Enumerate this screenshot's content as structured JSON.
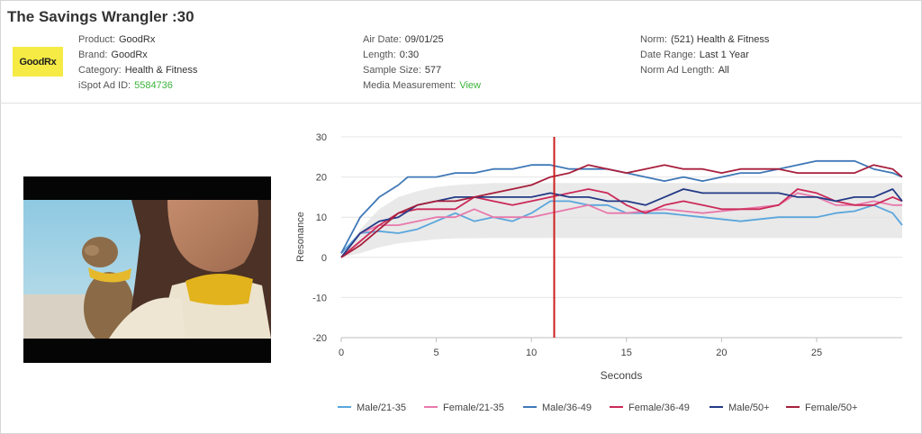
{
  "header": {
    "title": "The Savings Wrangler :30",
    "logo_text": "GoodRx",
    "col1": [
      {
        "label": "Product:",
        "value": "GoodRx"
      },
      {
        "label": "Brand:",
        "value": "GoodRx"
      },
      {
        "label": "Category:",
        "value": "Health & Fitness"
      },
      {
        "label": "iSpot Ad ID:",
        "value": "5584736"
      }
    ],
    "col2": [
      {
        "label": "Air Date:",
        "value": "09/01/25"
      },
      {
        "label": "Length:",
        "value": "0:30"
      },
      {
        "label": "Sample Size:",
        "value": "577"
      },
      {
        "label": "Media Measurement:",
        "value": "View"
      }
    ],
    "col3": [
      {
        "label": "Norm:",
        "value": "(521) Health & Fitness"
      },
      {
        "label": "Date Range:",
        "value": "Last 1 Year"
      },
      {
        "label": "Norm Ad Length:",
        "value": "All"
      }
    ]
  },
  "colors": {
    "green": "#3db33d",
    "logo_bg": "#f6eb45",
    "marker": "#cc1f1f",
    "norm_band": "#e9e9e9"
  },
  "chart_data": {
    "type": "line",
    "xlabel": "Seconds",
    "ylabel": "Resonance",
    "xlim": [
      0,
      29.5
    ],
    "ylim": [
      -20,
      30
    ],
    "xticks": [
      0,
      5,
      10,
      15,
      20,
      25
    ],
    "yticks": [
      -20,
      -10,
      0,
      10,
      20,
      30
    ],
    "marker_x": 11.2,
    "norm_band": {
      "x": [
        0,
        1,
        2,
        3,
        4,
        5,
        6,
        8,
        10,
        12,
        15,
        20,
        25,
        29.5
      ],
      "upper": [
        0,
        7,
        12,
        15,
        16.5,
        17.5,
        18,
        18.5,
        18.5,
        18.5,
        18.5,
        18.5,
        18.5,
        18.5
      ],
      "lower": [
        0,
        1,
        2.5,
        3.5,
        4,
        4.5,
        4.7,
        4.8,
        4.8,
        4.8,
        4.8,
        4.8,
        4.8,
        4.8
      ]
    },
    "series": [
      {
        "name": "Male/21-35",
        "color": "#5aa6dc",
        "points": [
          [
            0,
            1
          ],
          [
            1,
            6
          ],
          [
            2,
            6.5
          ],
          [
            3,
            6
          ],
          [
            4,
            7
          ],
          [
            5,
            9
          ],
          [
            6,
            11
          ],
          [
            7,
            9
          ],
          [
            8,
            10
          ],
          [
            9,
            9
          ],
          [
            10,
            11
          ],
          [
            11,
            14
          ],
          [
            12,
            14
          ],
          [
            13,
            13
          ],
          [
            14,
            13
          ],
          [
            15,
            11
          ],
          [
            17,
            11
          ],
          [
            19,
            10
          ],
          [
            21,
            9
          ],
          [
            23,
            10
          ],
          [
            25,
            10
          ],
          [
            26,
            11
          ],
          [
            27,
            11.5
          ],
          [
            28,
            13
          ],
          [
            29,
            11
          ],
          [
            29.5,
            8
          ]
        ]
      },
      {
        "name": "Female/21-35",
        "color": "#e879ab",
        "points": [
          [
            0,
            0
          ],
          [
            1,
            6
          ],
          [
            2,
            8
          ],
          [
            3,
            8
          ],
          [
            4,
            9
          ],
          [
            5,
            10
          ],
          [
            6,
            10
          ],
          [
            7,
            12
          ],
          [
            8,
            10
          ],
          [
            9,
            10
          ],
          [
            10,
            10
          ],
          [
            11,
            11
          ],
          [
            12,
            12
          ],
          [
            13,
            13
          ],
          [
            14,
            11
          ],
          [
            15,
            11
          ],
          [
            17,
            12
          ],
          [
            19,
            11
          ],
          [
            21,
            12
          ],
          [
            23,
            13
          ],
          [
            24,
            16
          ],
          [
            25,
            15
          ],
          [
            26,
            13
          ],
          [
            27,
            13
          ],
          [
            28,
            14
          ],
          [
            29,
            13
          ],
          [
            29.5,
            13
          ]
        ]
      },
      {
        "name": "Male/36-49",
        "color": "#3f78b7",
        "points": [
          [
            0,
            1
          ],
          [
            1,
            10
          ],
          [
            2,
            15
          ],
          [
            3,
            18
          ],
          [
            3.5,
            20
          ],
          [
            5,
            20
          ],
          [
            6,
            21
          ],
          [
            7,
            21
          ],
          [
            8,
            22
          ],
          [
            9,
            22
          ],
          [
            10,
            23
          ],
          [
            11,
            23
          ],
          [
            12,
            22
          ],
          [
            14,
            22
          ],
          [
            15,
            21
          ],
          [
            16,
            20
          ],
          [
            17,
            19
          ],
          [
            18,
            20
          ],
          [
            19,
            19
          ],
          [
            20,
            20
          ],
          [
            21,
            21
          ],
          [
            22,
            21
          ],
          [
            23,
            22
          ],
          [
            24,
            23
          ],
          [
            25,
            24
          ],
          [
            26,
            24
          ],
          [
            27,
            24
          ],
          [
            28,
            22
          ],
          [
            29,
            21
          ],
          [
            29.5,
            20
          ]
        ]
      },
      {
        "name": "Female/36-49",
        "color": "#cc2958",
        "points": [
          [
            0,
            0
          ],
          [
            1,
            4
          ],
          [
            2,
            8
          ],
          [
            3,
            11
          ],
          [
            4,
            12
          ],
          [
            5,
            12
          ],
          [
            6,
            12
          ],
          [
            7,
            15
          ],
          [
            8,
            14
          ],
          [
            9,
            13
          ],
          [
            10,
            14
          ],
          [
            11,
            15
          ],
          [
            12,
            16
          ],
          [
            13,
            17
          ],
          [
            14,
            16
          ],
          [
            15,
            13
          ],
          [
            16,
            11
          ],
          [
            17,
            13
          ],
          [
            18,
            14
          ],
          [
            19,
            13
          ],
          [
            20,
            12
          ],
          [
            22,
            12
          ],
          [
            23,
            13
          ],
          [
            24,
            17
          ],
          [
            25,
            16
          ],
          [
            26,
            14
          ],
          [
            27,
            13
          ],
          [
            28,
            13
          ],
          [
            29,
            15
          ],
          [
            29.5,
            14
          ]
        ]
      },
      {
        "name": "Male/50+",
        "color": "#233a86",
        "points": [
          [
            0,
            0
          ],
          [
            1,
            6
          ],
          [
            2,
            9
          ],
          [
            3,
            10
          ],
          [
            4,
            13
          ],
          [
            5,
            14
          ],
          [
            6,
            15
          ],
          [
            8,
            15
          ],
          [
            10,
            15
          ],
          [
            11,
            16
          ],
          [
            12,
            15
          ],
          [
            13,
            15
          ],
          [
            14,
            14
          ],
          [
            15,
            14
          ],
          [
            16,
            13
          ],
          [
            17,
            15
          ],
          [
            18,
            17
          ],
          [
            19,
            16
          ],
          [
            21,
            16
          ],
          [
            23,
            16
          ],
          [
            24,
            15
          ],
          [
            25,
            15
          ],
          [
            26,
            14
          ],
          [
            27,
            15
          ],
          [
            28,
            15
          ],
          [
            29,
            17
          ],
          [
            29.5,
            14
          ]
        ]
      },
      {
        "name": "Female/50+",
        "color": "#a81f3c",
        "points": [
          [
            0,
            0
          ],
          [
            1,
            3
          ],
          [
            2,
            7
          ],
          [
            3,
            11
          ],
          [
            4,
            13
          ],
          [
            5,
            14
          ],
          [
            6,
            14
          ],
          [
            7,
            15
          ],
          [
            8,
            16
          ],
          [
            9,
            17
          ],
          [
            10,
            18
          ],
          [
            11,
            20
          ],
          [
            12,
            21
          ],
          [
            13,
            23
          ],
          [
            14,
            22
          ],
          [
            15,
            21
          ],
          [
            16,
            22
          ],
          [
            17,
            23
          ],
          [
            18,
            22
          ],
          [
            19,
            22
          ],
          [
            20,
            21
          ],
          [
            21,
            22
          ],
          [
            22,
            22
          ],
          [
            23,
            22
          ],
          [
            24,
            21
          ],
          [
            25,
            21
          ],
          [
            26,
            21
          ],
          [
            27,
            21
          ],
          [
            28,
            23
          ],
          [
            29,
            22
          ],
          [
            29.5,
            20
          ]
        ]
      }
    ]
  }
}
